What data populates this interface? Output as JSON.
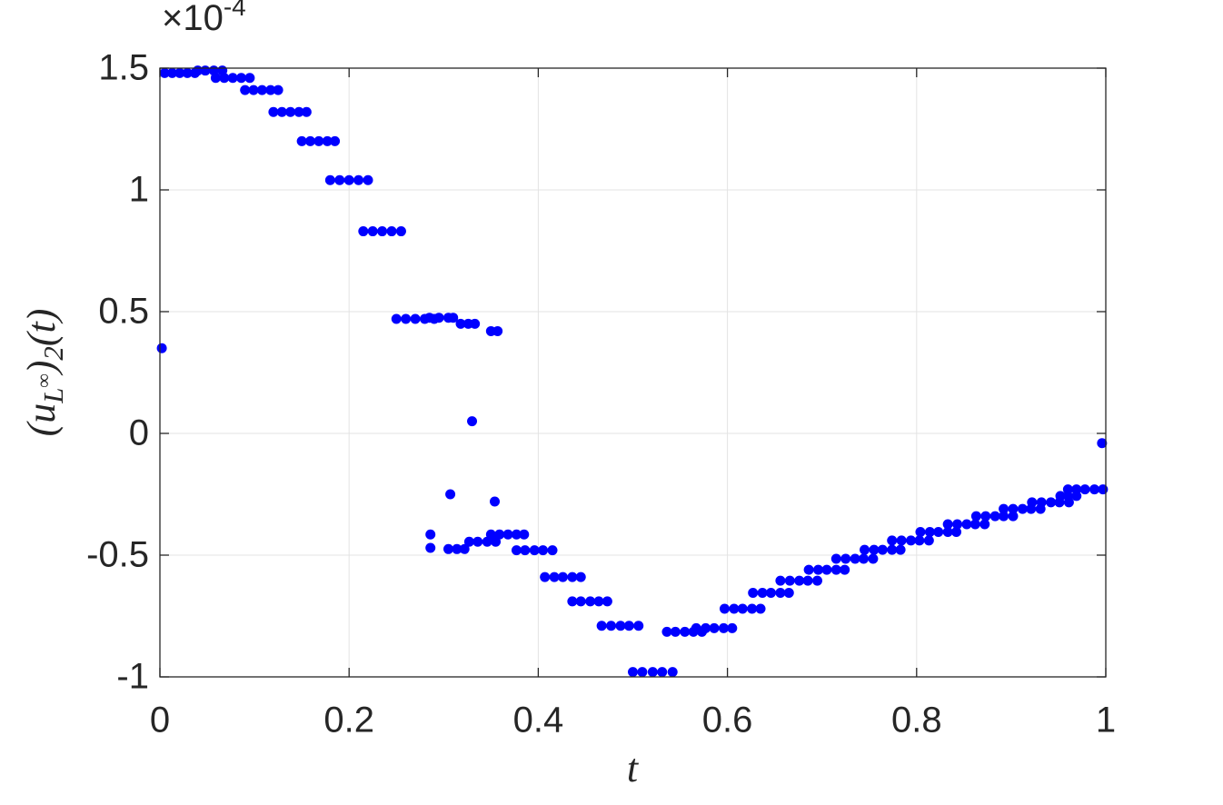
{
  "chart_data": {
    "type": "scatter",
    "xlabel": "t",
    "ylabel": "(u_{L^∞})_2(t)",
    "multiplier": "×10^{-4}",
    "xlim": [
      0,
      1
    ],
    "ylim": [
      -1,
      1.5
    ],
    "xticks": [
      0,
      0.2,
      0.4,
      0.6,
      0.8,
      1
    ],
    "yticks": [
      -1,
      -0.5,
      0,
      0.5,
      1,
      1.5
    ],
    "grid": true,
    "color": "#0000ff",
    "x": [
      0.002,
      0.005,
      0.013,
      0.021,
      0.029,
      0.037,
      0.04,
      0.048,
      0.057,
      0.066,
      0.059,
      0.068,
      0.077,
      0.086,
      0.095,
      0.09,
      0.099,
      0.108,
      0.117,
      0.125,
      0.12,
      0.129,
      0.138,
      0.147,
      0.155,
      0.15,
      0.159,
      0.168,
      0.177,
      0.185,
      0.18,
      0.19,
      0.2,
      0.21,
      0.22,
      0.215,
      0.225,
      0.235,
      0.245,
      0.255,
      0.25,
      0.26,
      0.27,
      0.28,
      0.29,
      0.285,
      0.295,
      0.305,
      0.31,
      0.318,
      0.326,
      0.333,
      0.35,
      0.357,
      0.33,
      0.307,
      0.354,
      0.286,
      0.286,
      0.305,
      0.314,
      0.322,
      0.327,
      0.336,
      0.346,
      0.355,
      0.35,
      0.359,
      0.368,
      0.377,
      0.385,
      0.377,
      0.386,
      0.396,
      0.405,
      0.415,
      0.407,
      0.417,
      0.426,
      0.436,
      0.445,
      0.436,
      0.445,
      0.455,
      0.464,
      0.473,
      0.467,
      0.477,
      0.487,
      0.496,
      0.506,
      0.5,
      0.51,
      0.521,
      0.531,
      0.542,
      0.536,
      0.545,
      0.555,
      0.564,
      0.573,
      0.567,
      0.577,
      0.586,
      0.596,
      0.605,
      0.597,
      0.607,
      0.616,
      0.626,
      0.635,
      0.627,
      0.637,
      0.646,
      0.656,
      0.665,
      0.656,
      0.666,
      0.676,
      0.685,
      0.695,
      0.686,
      0.696,
      0.705,
      0.715,
      0.724,
      0.715,
      0.725,
      0.735,
      0.744,
      0.754,
      0.745,
      0.755,
      0.764,
      0.774,
      0.783,
      0.774,
      0.784,
      0.794,
      0.803,
      0.813,
      0.804,
      0.814,
      0.823,
      0.833,
      0.842,
      0.833,
      0.843,
      0.853,
      0.862,
      0.872,
      0.863,
      0.873,
      0.883,
      0.892,
      0.902,
      0.892,
      0.902,
      0.912,
      0.921,
      0.931,
      0.922,
      0.932,
      0.942,
      0.951,
      0.961,
      0.952,
      0.96,
      0.969,
      0.96,
      0.969,
      0.978,
      0.988,
      0.997,
      0.996
    ],
    "values": [
      0.35,
      1.48,
      1.48,
      1.48,
      1.48,
      1.48,
      1.49,
      1.49,
      1.49,
      1.49,
      1.46,
      1.46,
      1.46,
      1.46,
      1.46,
      1.41,
      1.41,
      1.41,
      1.41,
      1.41,
      1.32,
      1.32,
      1.32,
      1.32,
      1.32,
      1.2,
      1.2,
      1.2,
      1.2,
      1.2,
      1.04,
      1.04,
      1.04,
      1.04,
      1.04,
      0.83,
      0.83,
      0.83,
      0.83,
      0.83,
      0.47,
      0.47,
      0.47,
      0.47,
      0.47,
      0.475,
      0.475,
      0.475,
      0.475,
      0.45,
      0.45,
      0.45,
      0.42,
      0.42,
      0.05,
      -0.25,
      -0.28,
      -0.415,
      -0.47,
      -0.475,
      -0.475,
      -0.475,
      -0.445,
      -0.445,
      -0.445,
      -0.445,
      -0.415,
      -0.415,
      -0.415,
      -0.415,
      -0.415,
      -0.48,
      -0.48,
      -0.48,
      -0.48,
      -0.48,
      -0.59,
      -0.59,
      -0.59,
      -0.59,
      -0.59,
      -0.69,
      -0.69,
      -0.69,
      -0.69,
      -0.69,
      -0.79,
      -0.79,
      -0.79,
      -0.79,
      -0.79,
      -0.98,
      -0.98,
      -0.98,
      -0.98,
      -0.98,
      -0.815,
      -0.815,
      -0.815,
      -0.815,
      -0.815,
      -0.8,
      -0.8,
      -0.8,
      -0.8,
      -0.8,
      -0.72,
      -0.72,
      -0.72,
      -0.72,
      -0.72,
      -0.655,
      -0.655,
      -0.655,
      -0.655,
      -0.655,
      -0.605,
      -0.605,
      -0.605,
      -0.605,
      -0.605,
      -0.56,
      -0.56,
      -0.56,
      -0.56,
      -0.56,
      -0.515,
      -0.515,
      -0.515,
      -0.515,
      -0.515,
      -0.478,
      -0.478,
      -0.478,
      -0.478,
      -0.478,
      -0.44,
      -0.44,
      -0.44,
      -0.44,
      -0.44,
      -0.405,
      -0.405,
      -0.405,
      -0.405,
      -0.405,
      -0.373,
      -0.373,
      -0.373,
      -0.373,
      -0.373,
      -0.34,
      -0.34,
      -0.34,
      -0.34,
      -0.34,
      -0.31,
      -0.31,
      -0.31,
      -0.31,
      -0.31,
      -0.283,
      -0.283,
      -0.283,
      -0.283,
      -0.283,
      -0.257,
      -0.257,
      -0.257,
      -0.23,
      -0.23,
      -0.23,
      -0.23,
      -0.23,
      -0.04
    ]
  }
}
